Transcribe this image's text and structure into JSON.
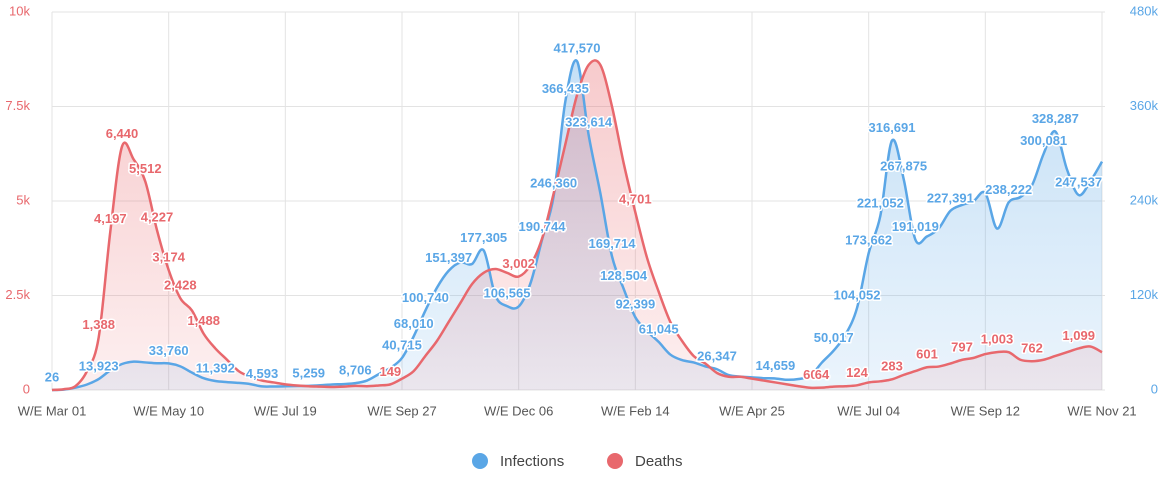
{
  "chart_data": {
    "type": "area",
    "categories": [
      "W/E Mar 01",
      null,
      null,
      null,
      null,
      null,
      null,
      null,
      null,
      null,
      "W/E May 10",
      null,
      null,
      null,
      null,
      null,
      null,
      null,
      null,
      null,
      "W/E Jul 19",
      null,
      null,
      null,
      null,
      null,
      null,
      null,
      null,
      null,
      "W/E Sep 27",
      null,
      null,
      null,
      null,
      null,
      null,
      null,
      null,
      null,
      "W/E Dec 06",
      null,
      null,
      null,
      null,
      null,
      null,
      null,
      null,
      null,
      "W/E Feb 14",
      null,
      null,
      null,
      null,
      null,
      null,
      null,
      null,
      null,
      "W/E Apr 25",
      null,
      null,
      null,
      null,
      null,
      null,
      null,
      null,
      null,
      "W/E Jul 04",
      null,
      null,
      null,
      null,
      null,
      null,
      null,
      null,
      null,
      "W/E Sep 12",
      null,
      null,
      null,
      null,
      null,
      null,
      null,
      null,
      null,
      "W/E Nov 21"
    ],
    "series": [
      {
        "name": "Infections",
        "color": "#5aa6e6",
        "axis": "y2",
        "values": [
          26,
          500,
          3000,
          7000,
          13923,
          25000,
          33000,
          36000,
          35000,
          34000,
          33760,
          30000,
          22000,
          15000,
          11392,
          10000,
          9000,
          7500,
          4593,
          4500,
          4700,
          5000,
          5259,
          6000,
          7000,
          7500,
          8706,
          12000,
          20000,
          28000,
          40715,
          68010,
          100740,
          130000,
          151397,
          162000,
          160000,
          177305,
          120000,
          106565,
          106000,
          135000,
          190744,
          246360,
          366435,
          417570,
          323614,
          250000,
          169714,
          128504,
          92399,
          75000,
          61045,
          45000,
          38000,
          35000,
          30000,
          26347,
          19000,
          17000,
          16000,
          15000,
          14659,
          13000,
          14000,
          18000,
          35000,
          50017,
          70000,
          104052,
          173662,
          221052,
          316691,
          267875,
          191019,
          195000,
          205000,
          227391,
          235000,
          240000,
          250000,
          205000,
          238222,
          245000,
          260000,
          300081,
          328287,
          280000,
          247537,
          265000,
          290000
        ],
        "value_labels": [
          "26",
          null,
          null,
          null,
          "13,923",
          null,
          null,
          null,
          null,
          null,
          "33,760",
          null,
          null,
          null,
          "11,392",
          null,
          null,
          null,
          "4,593",
          null,
          null,
          null,
          "5,259",
          null,
          null,
          null,
          "8,706",
          null,
          null,
          null,
          "40,715",
          "68,010",
          "100,740",
          null,
          "151,397",
          null,
          null,
          "177,305",
          null,
          "106,565",
          null,
          null,
          "190,744",
          "246,360",
          "366,435",
          "417,570",
          "323,614",
          null,
          "169,714",
          "128,504",
          "92,399",
          null,
          "61,045",
          null,
          null,
          null,
          null,
          "26,347",
          null,
          null,
          null,
          null,
          "14,659",
          null,
          null,
          null,
          null,
          "50,017",
          null,
          "104,052",
          "173,662",
          "221,052",
          "316,691",
          "267,875",
          "191,019",
          null,
          null,
          "227,391",
          null,
          null,
          null,
          null,
          "238,222",
          null,
          null,
          "300,081",
          "328,287",
          null,
          "247,537",
          null,
          null
        ]
      },
      {
        "name": "Deaths",
        "color": "#e8686d",
        "values": [
          0,
          20,
          100,
          500,
          1388,
          4197,
          6440,
          6100,
          5512,
          4227,
          3174,
          2428,
          2100,
          1488,
          1100,
          800,
          500,
          350,
          250,
          200,
          150,
          120,
          100,
          90,
          80,
          90,
          110,
          100,
          120,
          149,
          300,
          500,
          900,
          1300,
          1800,
          2300,
          2800,
          3100,
          3200,
          3100,
          3002,
          3300,
          4000,
          5200,
          6500,
          7800,
          8600,
          8600,
          7500,
          6000,
          4701,
          3500,
          2600,
          1800,
          1300,
          900,
          700,
          450,
          350,
          350,
          300,
          250,
          200,
          150,
          100,
          60,
          64,
          90,
          100,
          124,
          200,
          230,
          283,
          400,
          500,
          601,
          620,
          700,
          797,
          850,
          950,
          1003,
          1000,
          800,
          762,
          800,
          900,
          1000,
          1099,
          1150,
          1000
        ],
        "value_labels": [
          null,
          null,
          null,
          null,
          "1,388",
          "4,197",
          "6,440",
          null,
          "5,512",
          "4,227",
          "3,174",
          "2,428",
          null,
          "1,488",
          null,
          null,
          null,
          null,
          null,
          null,
          null,
          null,
          null,
          null,
          null,
          null,
          null,
          null,
          null,
          "149",
          null,
          null,
          null,
          null,
          null,
          null,
          null,
          null,
          null,
          null,
          "3,002",
          null,
          null,
          null,
          null,
          null,
          null,
          null,
          null,
          null,
          "4,701",
          null,
          null,
          null,
          null,
          null,
          null,
          null,
          null,
          null,
          null,
          null,
          null,
          null,
          null,
          "60",
          "64",
          null,
          null,
          "124",
          null,
          null,
          "283",
          null,
          null,
          "601",
          null,
          null,
          "797",
          null,
          null,
          "1,003",
          null,
          null,
          "762",
          null,
          null,
          null,
          "1,099",
          null,
          null
        ]
      }
    ],
    "ylim": [
      0,
      10000
    ],
    "yticks": [
      {
        "value": 0,
        "label": "0"
      },
      {
        "value": 2500,
        "label": "2.5k"
      },
      {
        "value": 5000,
        "label": "5k"
      },
      {
        "value": 7500,
        "label": "7.5k"
      },
      {
        "value": 10000,
        "label": "10k"
      }
    ],
    "y2lim": [
      0,
      480000
    ],
    "y2ticks": [
      {
        "value": 0,
        "label": "0"
      },
      {
        "value": 120000,
        "label": "120k"
      },
      {
        "value": 240000,
        "label": "240k"
      },
      {
        "value": 360000,
        "label": "360k"
      },
      {
        "value": 480000,
        "label": "480k"
      }
    ],
    "grid": true,
    "legend": "bottom"
  }
}
